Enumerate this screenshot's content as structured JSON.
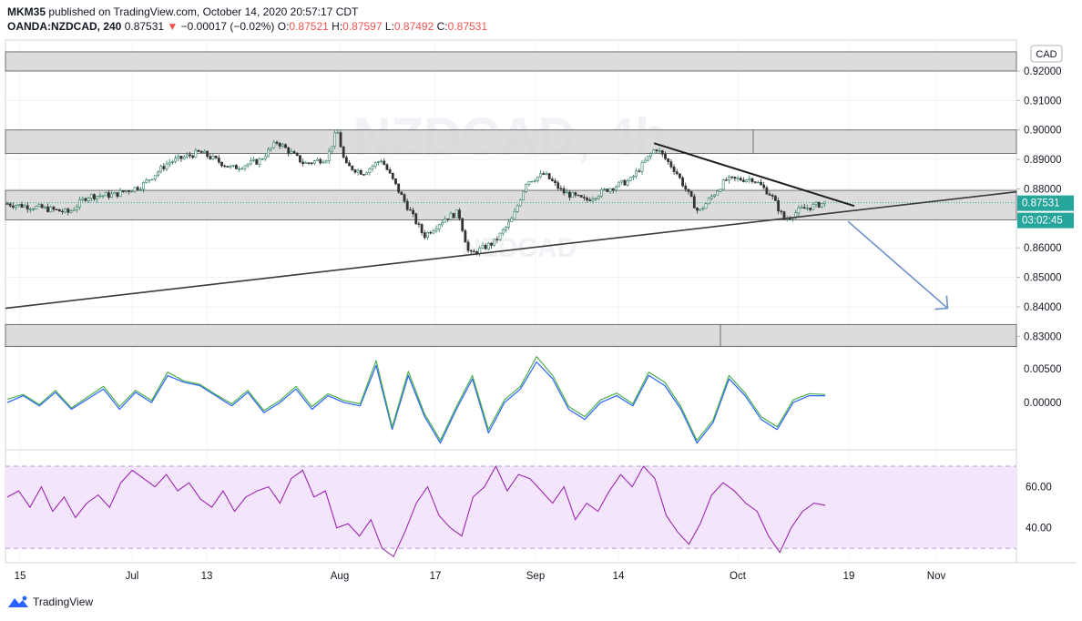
{
  "header": {
    "author": "MKM35",
    "published_text": "published on TradingView.com, October 14, 2020 20:57:17 CDT",
    "symbol": "OANDA:NZDCAD, 240",
    "last": "0.87531",
    "change_arrow": "▼",
    "change": "−0.00017 (−0.02%)",
    "open_label": "O:",
    "open": "0.87521",
    "high_label": "H:",
    "high": "0.87597",
    "low_label": "L:",
    "low": "0.87492",
    "close_label": "C:",
    "close": "0.87531"
  },
  "watermark": {
    "top": "NZDCAD, 4h",
    "bottom": "NZDCAD"
  },
  "price_axis": {
    "currency": "CAD",
    "ticks": [
      "0.92000",
      "0.91000",
      "0.90000",
      "0.89000",
      "0.88000",
      "0.87000",
      "0.86000",
      "0.85000",
      "0.84000",
      "0.83000"
    ],
    "last_price_tag": "0.87531",
    "countdown_tag": "03:02:45"
  },
  "osc_axis": {
    "ticks": [
      "0.00500",
      "0.00000"
    ]
  },
  "rsi_axis": {
    "ticks": [
      "60.00",
      "40.00"
    ]
  },
  "time_axis": {
    "labels": [
      "15",
      "Jul",
      "13",
      "Aug",
      "17",
      "Sep",
      "14",
      "Oct",
      "19",
      "Nov"
    ]
  },
  "footer": {
    "brand": "TradingView"
  },
  "colors": {
    "up": "#26a69a",
    "down": "#ef5350",
    "candle_up": "#2e7d5b",
    "candle_down": "#333333",
    "zone_fill": "#d6d6d6",
    "zone_border": "#555555",
    "trend": "#1e1e1e",
    "arrow": "#6f8fc7",
    "macd_blue": "#2962ff",
    "macd_green": "#4caf50",
    "rsi_line": "#9c27b0",
    "rsi_band": "#f3e5fc",
    "price_tag": "#26a69a"
  },
  "chart_data": [
    {
      "type": "candlestick",
      "title": "OANDA:NZDCAD, 240",
      "x_labels": [
        "15",
        "Jul",
        "13",
        "Aug",
        "17",
        "Sep",
        "14",
        "Oct",
        "19",
        "Nov"
      ],
      "ylim": [
        0.827,
        0.9305
      ],
      "y_ticks": [
        0.92,
        0.91,
        0.9,
        0.89,
        0.88,
        0.87,
        0.86,
        0.85,
        0.84,
        0.83
      ],
      "trajectory": [
        {
          "t": 0,
          "p": 0.875
        },
        {
          "t": 40,
          "p": 0.8735
        },
        {
          "t": 70,
          "p": 0.872
        },
        {
          "t": 90,
          "p": 0.8775
        },
        {
          "t": 120,
          "p": 0.878
        },
        {
          "t": 150,
          "p": 0.881
        },
        {
          "t": 180,
          "p": 0.889
        },
        {
          "t": 215,
          "p": 0.8925
        },
        {
          "t": 250,
          "p": 0.887
        },
        {
          "t": 280,
          "p": 0.8895
        },
        {
          "t": 300,
          "p": 0.896
        },
        {
          "t": 330,
          "p": 0.8885
        },
        {
          "t": 355,
          "p": 0.8905
        },
        {
          "t": 366,
          "p": 0.9
        },
        {
          "t": 375,
          "p": 0.888
        },
        {
          "t": 395,
          "p": 0.8855
        },
        {
          "t": 415,
          "p": 0.89
        },
        {
          "t": 440,
          "p": 0.876
        },
        {
          "t": 462,
          "p": 0.864
        },
        {
          "t": 485,
          "p": 0.87
        },
        {
          "t": 500,
          "p": 0.872
        },
        {
          "t": 512,
          "p": 0.8575
        },
        {
          "t": 540,
          "p": 0.862
        },
        {
          "t": 560,
          "p": 0.87
        },
        {
          "t": 575,
          "p": 0.8825
        },
        {
          "t": 595,
          "p": 0.885
        },
        {
          "t": 615,
          "p": 0.879
        },
        {
          "t": 640,
          "p": 0.876
        },
        {
          "t": 665,
          "p": 0.88
        },
        {
          "t": 690,
          "p": 0.883
        },
        {
          "t": 718,
          "p": 0.894
        },
        {
          "t": 740,
          "p": 0.886
        },
        {
          "t": 765,
          "p": 0.872
        },
        {
          "t": 795,
          "p": 0.883
        },
        {
          "t": 825,
          "p": 0.8835
        },
        {
          "t": 845,
          "p": 0.878
        },
        {
          "t": 860,
          "p": 0.8695
        },
        {
          "t": 878,
          "p": 0.873
        },
        {
          "t": 905,
          "p": 0.8753
        }
      ],
      "support_zones": [
        [
          0.92,
          0.9265
        ],
        [
          0.892,
          0.9
        ],
        [
          0.8695,
          0.8795
        ],
        [
          0.8265,
          0.834
        ]
      ],
      "trendlines": [
        {
          "from": {
            "t": 0,
            "p": 0.8395
          },
          "to": {
            "t": 1116,
            "p": 0.879
          }
        },
        {
          "from": {
            "t": 716,
            "p": 0.8955
          },
          "to": {
            "t": 937,
            "p": 0.8742
          }
        }
      ],
      "projection_arrow": {
        "from": {
          "t": 930,
          "p": 0.869
        },
        "to": {
          "t": 1040,
          "p": 0.8395
        }
      }
    },
    {
      "type": "line",
      "title": "",
      "ylim": [
        -0.007,
        0.0085
      ],
      "y_ticks": [
        0.005,
        0.0
      ],
      "series": [
        {
          "color": "#2962ff",
          "values": [
            0.0,
            0.001,
            -0.0005,
            0.0015,
            -0.001,
            0.0005,
            0.002,
            -0.001,
            0.0015,
            0.0,
            0.004,
            0.003,
            0.0025,
            0.001,
            -0.0005,
            0.0015,
            -0.0015,
            0.0,
            0.002,
            -0.001,
            0.001,
            0.0,
            -0.0005,
            0.0055,
            -0.004,
            0.004,
            -0.002,
            -0.006,
            -0.001,
            0.0035,
            -0.0045,
            0.0,
            0.002,
            0.006,
            0.0035,
            -0.001,
            -0.0025,
            0.0,
            0.001,
            -0.0005,
            0.004,
            0.0025,
            -0.001,
            -0.006,
            -0.003,
            0.0035,
            0.001,
            -0.0025,
            -0.004,
            0.0,
            0.001,
            0.001
          ]
        },
        {
          "color": "#4caf50",
          "values": [
            0.0005,
            0.0012,
            -0.0003,
            0.0018,
            -0.0008,
            0.0008,
            0.0024,
            -0.0006,
            0.0018,
            0.0003,
            0.0045,
            0.0032,
            0.0027,
            0.0012,
            -0.0002,
            0.0018,
            -0.0012,
            0.0003,
            0.0024,
            -0.0006,
            0.0013,
            0.0003,
            -0.0002,
            0.0062,
            -0.0036,
            0.0046,
            -0.0016,
            -0.0056,
            -0.0006,
            0.004,
            -0.004,
            0.0004,
            0.0024,
            0.0068,
            0.004,
            -0.0006,
            -0.0021,
            0.0004,
            0.0014,
            -0.0002,
            0.0045,
            0.003,
            -0.0006,
            -0.0056,
            -0.0026,
            0.004,
            0.0014,
            -0.0021,
            -0.0036,
            0.0004,
            0.0013,
            0.0012
          ]
        }
      ]
    },
    {
      "type": "line",
      "title": "",
      "ylim": [
        23,
        78
      ],
      "y_ticks": [
        60,
        40
      ],
      "band": [
        30,
        70
      ],
      "series": [
        {
          "color": "#9c27b0",
          "values": [
            55,
            58,
            50,
            60,
            48,
            55,
            45,
            52,
            56,
            50,
            62,
            68,
            64,
            60,
            66,
            58,
            62,
            54,
            50,
            58,
            48,
            55,
            58,
            60,
            52,
            64,
            68,
            55,
            58,
            40,
            42,
            36,
            44,
            30,
            26,
            38,
            52,
            60,
            46,
            40,
            36,
            55,
            60,
            70,
            58,
            66,
            64,
            58,
            52,
            60,
            44,
            52,
            48,
            58,
            66,
            60,
            70,
            64,
            46,
            38,
            32,
            42,
            56,
            62,
            58,
            52,
            48,
            36,
            28,
            40,
            48,
            52,
            51
          ]
        }
      ]
    }
  ]
}
